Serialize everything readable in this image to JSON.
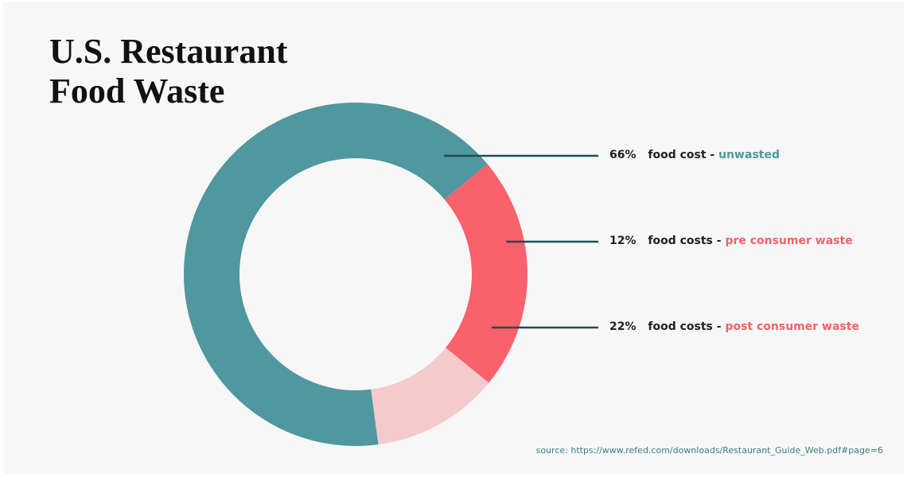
{
  "title_lines": [
    "U.S. Restaurant",
    "Food Waste"
  ],
  "chart_data": {
    "type": "pie",
    "title": "U.S. Restaurant Food Waste",
    "slices": [
      {
        "percent_label": "66%",
        "text": "food cost - ",
        "highlight": "unwasted",
        "value": 66,
        "color": "#5097a0",
        "text_color": "#5097a0"
      },
      {
        "percent_label": "12%",
        "text": "food costs - ",
        "highlight": "pre consumer waste",
        "value": 12,
        "color": "#f4cacb",
        "text_color": "#f3636a"
      },
      {
        "percent_label": "22%",
        "text": "food costs - ",
        "highlight": "post consumer waste",
        "value": 22,
        "color": "#f9626b",
        "text_color": "#f3636a"
      }
    ],
    "start_angle_deg": 40,
    "direction": "counterclockwise"
  },
  "source": "source: https://www.refed.com/downloads/Restaurant_Guide_Web.pdf#page=6",
  "colors": {
    "background": "#f7f7f7",
    "leader": "#1e4d52"
  }
}
